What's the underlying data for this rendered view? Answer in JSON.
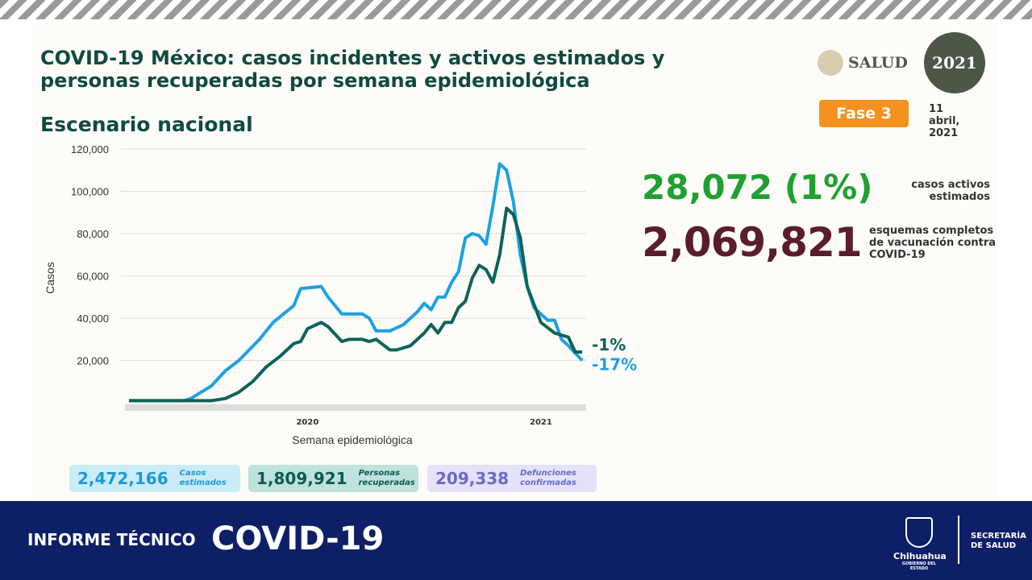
{
  "header": {
    "title": "COVID-19 México: casos incidentes y activos estimados y personas recuperadas por semana epidemiológica",
    "subtitle": "Escenario nacional",
    "salud_logo": "SALUD",
    "mexico_logo": "2021",
    "phase": "Fase 3",
    "date": "11 abril, 2021"
  },
  "stats": {
    "active_value": "28,072 (1%)",
    "active_label": "casos activos estimados",
    "vaccine_value": "2,069,821",
    "vaccine_label": "esquemas completos de vacunación contra COVID-19"
  },
  "boxes": [
    {
      "value": "2,472,166",
      "label": "Casos estimados",
      "bg": "#c9ecf7",
      "color": "#1c9ad6"
    },
    {
      "value": "1,809,921",
      "label": "Personas recuperadas",
      "bg": "#bfe2dc",
      "color": "#0f5a50"
    },
    {
      "value": "209,338",
      "label": "Defunciones confirmadas",
      "bg": "#e4e2f7",
      "color": "#6a6ac8"
    }
  ],
  "footer": {
    "left": "INFORME TÉCNICO",
    "main": "COVID-19",
    "state": "Chihuahua",
    "state_sub": "GOBIERNO DEL ESTADO",
    "secretaria": "SECRETARÍA DE SALUD"
  },
  "chart_data": {
    "type": "line",
    "xlabel": "Semana epidemiológica",
    "ylabel": "Casos",
    "ylim": [
      0,
      120000
    ],
    "xlim": [
      0,
      66
    ],
    "yticks": [
      "20,000",
      "40,000",
      "60,000",
      "80,000",
      "100,000",
      "120,000"
    ],
    "ytick_values": [
      20000,
      40000,
      60000,
      80000,
      100000,
      120000
    ],
    "year_labels": [
      {
        "label": "2020",
        "x": 26
      },
      {
        "label": "2021",
        "x": 60
      }
    ],
    "grid": true,
    "series": [
      {
        "color": "#1da1e2",
        "end_label": "-17%",
        "points": [
          [
            0,
            1000
          ],
          [
            8,
            1000
          ],
          [
            9,
            2000
          ],
          [
            12,
            8000
          ],
          [
            14,
            15000
          ],
          [
            16,
            20000
          ],
          [
            19,
            30000
          ],
          [
            21,
            38000
          ],
          [
            24,
            46000
          ],
          [
            25,
            54000
          ],
          [
            28,
            55000
          ],
          [
            29,
            50000
          ],
          [
            31,
            42000
          ],
          [
            34,
            42000
          ],
          [
            35,
            40000
          ],
          [
            36,
            34000
          ],
          [
            38,
            34000
          ],
          [
            40,
            37000
          ],
          [
            42,
            43000
          ],
          [
            43,
            47000
          ],
          [
            44,
            44000
          ],
          [
            45,
            50000
          ],
          [
            46,
            50000
          ],
          [
            47,
            57000
          ],
          [
            48,
            62000
          ],
          [
            49,
            78000
          ],
          [
            50,
            80000
          ],
          [
            51,
            79000
          ],
          [
            52,
            75000
          ],
          [
            53,
            93000
          ],
          [
            54,
            113000
          ],
          [
            55,
            110000
          ],
          [
            56,
            95000
          ],
          [
            57,
            70000
          ],
          [
            58,
            55000
          ],
          [
            59,
            45000
          ],
          [
            60,
            42000
          ],
          [
            61,
            39000
          ],
          [
            62,
            39000
          ],
          [
            63,
            30000
          ],
          [
            64,
            27000
          ],
          [
            66,
            20000
          ]
        ]
      },
      {
        "color": "#0e6358",
        "end_label": "-1%",
        "points": [
          [
            0,
            1000
          ],
          [
            12,
            1000
          ],
          [
            14,
            2000
          ],
          [
            16,
            5000
          ],
          [
            18,
            10000
          ],
          [
            20,
            17000
          ],
          [
            22,
            22000
          ],
          [
            24,
            28000
          ],
          [
            25,
            29000
          ],
          [
            26,
            35000
          ],
          [
            28,
            38000
          ],
          [
            29,
            36000
          ],
          [
            31,
            29000
          ],
          [
            32,
            30000
          ],
          [
            34,
            30000
          ],
          [
            35,
            29000
          ],
          [
            36,
            30000
          ],
          [
            38,
            25000
          ],
          [
            39,
            25000
          ],
          [
            41,
            27000
          ],
          [
            43,
            33000
          ],
          [
            44,
            37000
          ],
          [
            45,
            33000
          ],
          [
            46,
            38000
          ],
          [
            47,
            38000
          ],
          [
            48,
            45000
          ],
          [
            49,
            48000
          ],
          [
            50,
            59000
          ],
          [
            51,
            65000
          ],
          [
            52,
            63000
          ],
          [
            53,
            57000
          ],
          [
            54,
            70000
          ],
          [
            55,
            92000
          ],
          [
            56,
            89000
          ],
          [
            57,
            78000
          ],
          [
            58,
            55000
          ],
          [
            60,
            38000
          ],
          [
            62,
            33000
          ],
          [
            63,
            32000
          ],
          [
            64,
            31000
          ],
          [
            65,
            24000
          ],
          [
            66,
            24000
          ]
        ]
      }
    ]
  }
}
